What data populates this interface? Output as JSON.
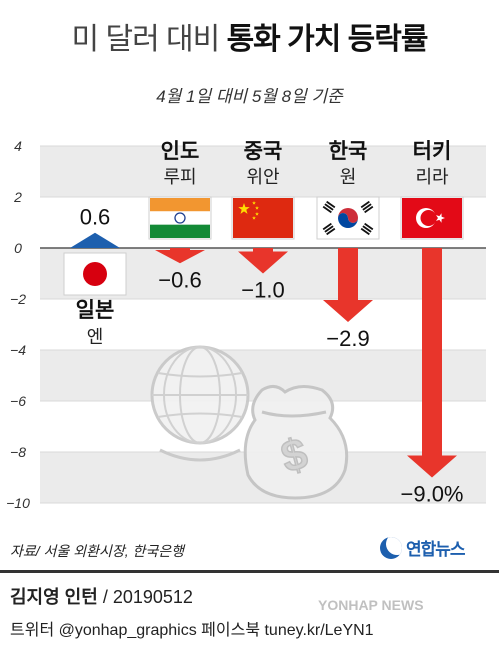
{
  "header": {
    "title_light": "미 달러 대비",
    "title_bold": "통화 가치 등락률",
    "subtitle": "4월 1일 대비 5월 8일 기준"
  },
  "chart_data": {
    "type": "bar",
    "title": "미 달러 대비 통화 가치 등락률",
    "subtitle": "4월 1일 대비 5월 8일 기준",
    "categories": [
      "일본 엔",
      "인도 루피",
      "중국 위안",
      "한국 원",
      "터키 리라"
    ],
    "series": [
      {
        "values": [
          0.6,
          -0.6,
          -1.0,
          -2.9,
          -9.0
        ]
      }
    ],
    "value_labels": [
      "0.6",
      "−0.6",
      "−1.0",
      "−2.9",
      "−9.0%"
    ],
    "ylim": [
      -10,
      4
    ],
    "yticks": [
      4,
      2,
      0,
      -2,
      -4,
      -6,
      -8,
      -10
    ],
    "ytick_labels": [
      "4",
      "2",
      "0",
      "−2",
      "−4",
      "−6",
      "−8",
      "−10"
    ],
    "grid": true,
    "colors": {
      "negative": "#e8352b",
      "positive": "#1d5fae",
      "band": "#ebebeb"
    },
    "countries": [
      {
        "name": "일본",
        "currency": "엔",
        "flag": "japan-flag-icon"
      },
      {
        "name": "인도",
        "currency": "루피",
        "flag": "india-flag-icon"
      },
      {
        "name": "중국",
        "currency": "위안",
        "flag": "china-flag-icon"
      },
      {
        "name": "한국",
        "currency": "원",
        "flag": "korea-flag-icon"
      },
      {
        "name": "터키",
        "currency": "리라",
        "flag": "turkey-flag-icon"
      }
    ]
  },
  "source": "자료/ 서울 외환시장, 한국은행",
  "logo": {
    "text": "연합뉴스",
    "icon": "yonhap-logo-icon"
  },
  "footer": {
    "author": "김지영 인턴",
    "date": "/ 20190512",
    "social": "트위터 @yonhap_graphics  페이스북 tuney.kr/LeYN1",
    "watermark": "YONHAP NEWS"
  }
}
